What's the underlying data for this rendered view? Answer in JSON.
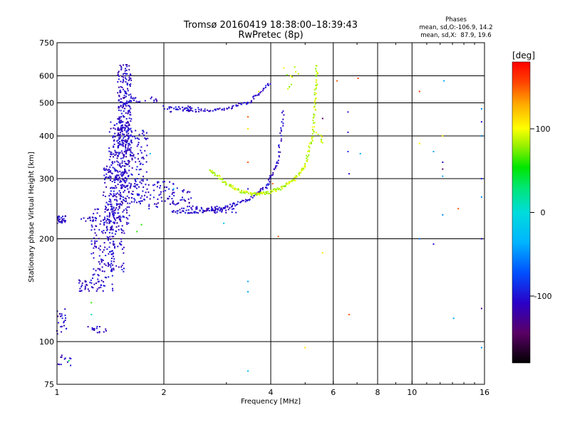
{
  "chart_data": {
    "type": "scatter",
    "title": "Tromsø 20160419 18:38:00–18:39:43",
    "subtitle": "RwPretec (8p)",
    "xlabel": "Frequency [MHz]",
    "ylabel": "Stationary phase Virtual Height [km]",
    "x_scale": "log",
    "y_scale": "log",
    "xlim": [
      1,
      16
    ],
    "ylim": [
      75,
      750
    ],
    "x_ticks": [
      1,
      2,
      4,
      6,
      8,
      10,
      16
    ],
    "y_ticks": [
      75,
      100,
      200,
      300,
      400,
      500,
      600,
      750
    ],
    "x_gridlines": [
      2,
      4,
      6,
      8,
      10
    ],
    "y_gridlines": [
      100,
      200,
      300,
      400,
      500,
      600
    ],
    "grid": true,
    "info": {
      "heading": "Phases",
      "o_stats": "mean, sd,O:-106.9, 14.2",
      "x_stats": "mean, sd,X:  87.9, 19.6"
    },
    "colorbar": {
      "label": "[deg]",
      "range": [
        -180,
        180
      ],
      "ticks": [
        -100,
        0,
        100
      ],
      "tick_labels": [
        "-100",
        "0",
        "100"
      ]
    },
    "series": [
      {
        "mode": "O",
        "phase_deg": -107,
        "clusters": [
          {
            "x": [
              1.0,
              1.06
            ],
            "y": [
              222,
              234
            ],
            "n": 30
          },
          {
            "x": [
              1.0,
              1.07
            ],
            "y": [
              105,
              125
            ],
            "n": 22
          },
          {
            "x": [
              1.0,
              1.1
            ],
            "y": [
              85,
              92
            ],
            "n": 12
          },
          {
            "x": [
              1.17,
              1.3
            ],
            "y": [
              225,
              232
            ],
            "n": 16
          },
          {
            "x": [
              1.15,
              1.28
            ],
            "y": [
              140,
              152
            ],
            "n": 26
          },
          {
            "x": [
              1.2,
              1.38
            ],
            "y": [
              106,
              111
            ],
            "n": 16
          },
          {
            "x": [
              1.25,
              1.45
            ],
            "y": [
              140,
              250
            ],
            "n": 130
          },
          {
            "x": [
              1.35,
              1.55
            ],
            "y": [
              160,
              330
            ],
            "n": 180
          },
          {
            "x": [
              1.4,
              1.6
            ],
            "y": [
              220,
              440
            ],
            "n": 260
          },
          {
            "x": [
              1.48,
              1.62
            ],
            "y": [
              350,
              650
            ],
            "n": 230
          },
          {
            "x": [
              1.55,
              1.8
            ],
            "y": [
              250,
              420
            ],
            "n": 130
          },
          {
            "x": [
              1.6,
              1.95
            ],
            "y": [
              500,
              520
            ],
            "n": 20
          },
          {
            "x": [
              1.95,
              2.5
            ],
            "y": [
              470,
              490
            ],
            "n": 22
          },
          {
            "x": [
              1.5,
              2.2
            ],
            "y": [
              280,
              295
            ],
            "n": 30
          },
          {
            "x": [
              1.8,
              2.4
            ],
            "y": [
              245,
              280
            ],
            "n": 60
          },
          {
            "x": [
              2.2,
              3.2
            ],
            "y": [
              238,
              250
            ],
            "n": 60
          }
        ],
        "curves": [
          {
            "x": [
              2.0,
              2.5,
              3.0,
              3.5,
              4.0
            ],
            "y": [
              485,
              475,
              480,
              505,
              575
            ]
          },
          {
            "x": [
              2.1,
              2.5,
              3.0,
              3.5,
              3.9,
              4.2,
              4.35
            ],
            "y": [
              240,
              240,
              248,
              262,
              285,
              340,
              480
            ]
          }
        ]
      },
      {
        "mode": "X",
        "phase_deg": 88,
        "curves": [
          {
            "x": [
              2.7,
              3.0,
              3.3,
              3.6,
              3.9,
              4.3,
              4.7,
              5.0,
              5.25,
              5.35,
              5.4
            ],
            "y": [
              318,
              290,
              275,
              270,
              272,
              282,
              300,
              330,
              400,
              520,
              650
            ]
          }
        ],
        "clusters": [
          {
            "x": [
              4.3,
              4.8
            ],
            "y": [
              545,
              640
            ],
            "n": 10
          },
          {
            "x": [
              5.35,
              5.6
            ],
            "y": [
              380,
              420
            ],
            "n": 8
          }
        ]
      }
    ],
    "scattered_points": [
      {
        "x": 1.25,
        "y": 130,
        "phase": 60
      },
      {
        "x": 1.25,
        "y": 120,
        "phase": 10
      },
      {
        "x": 1.08,
        "y": 88,
        "phase": 40
      },
      {
        "x": 1.83,
        "y": 355,
        "phase": -30
      },
      {
        "x": 1.73,
        "y": 220,
        "phase": 60
      },
      {
        "x": 1.68,
        "y": 210,
        "phase": 60
      },
      {
        "x": 2.13,
        "y": 280,
        "phase": -40
      },
      {
        "x": 2.95,
        "y": 222,
        "phase": -20
      },
      {
        "x": 3.45,
        "y": 280,
        "phase": -100
      },
      {
        "x": 3.45,
        "y": 140,
        "phase": -40
      },
      {
        "x": 3.45,
        "y": 150,
        "phase": -40
      },
      {
        "x": 3.45,
        "y": 82,
        "phase": -30
      },
      {
        "x": 3.45,
        "y": 335,
        "phase": 150
      },
      {
        "x": 3.45,
        "y": 455,
        "phase": 150
      },
      {
        "x": 3.45,
        "y": 420,
        "phase": 110
      },
      {
        "x": 3.7,
        "y": 540,
        "phase": 110
      },
      {
        "x": 4.05,
        "y": 290,
        "phase": 150
      },
      {
        "x": 4.2,
        "y": 203,
        "phase": 150
      },
      {
        "x": 4.55,
        "y": 600,
        "phase": 110
      },
      {
        "x": 5.0,
        "y": 96,
        "phase": 110
      },
      {
        "x": 5.6,
        "y": 182,
        "phase": 110
      },
      {
        "x": 5.6,
        "y": 450,
        "phase": -150
      },
      {
        "x": 6.15,
        "y": 580,
        "phase": 150
      },
      {
        "x": 6.65,
        "y": 120,
        "phase": 150
      },
      {
        "x": 6.6,
        "y": 470,
        "phase": -100
      },
      {
        "x": 6.6,
        "y": 410,
        "phase": -110
      },
      {
        "x": 6.6,
        "y": 360,
        "phase": -90
      },
      {
        "x": 6.65,
        "y": 310,
        "phase": -100
      },
      {
        "x": 7.05,
        "y": 590,
        "phase": 160
      },
      {
        "x": 7.15,
        "y": 355,
        "phase": -40
      },
      {
        "x": 10.5,
        "y": 540,
        "phase": 160
      },
      {
        "x": 10.5,
        "y": 380,
        "phase": 100
      },
      {
        "x": 10.5,
        "y": 200,
        "phase": -60
      },
      {
        "x": 11.5,
        "y": 360,
        "phase": -40
      },
      {
        "x": 11.5,
        "y": 193,
        "phase": -100
      },
      {
        "x": 12.3,
        "y": 580,
        "phase": -40
      },
      {
        "x": 12.2,
        "y": 400,
        "phase": 110
      },
      {
        "x": 12.2,
        "y": 335,
        "phase": -110
      },
      {
        "x": 12.2,
        "y": 320,
        "phase": -150
      },
      {
        "x": 12.2,
        "y": 305,
        "phase": -40
      },
      {
        "x": 12.2,
        "y": 235,
        "phase": -50
      },
      {
        "x": 13.1,
        "y": 117,
        "phase": -40
      },
      {
        "x": 13.5,
        "y": 245,
        "phase": 150
      },
      {
        "x": 15.7,
        "y": 480,
        "phase": -50
      },
      {
        "x": 15.7,
        "y": 400,
        "phase": -50
      },
      {
        "x": 15.7,
        "y": 300,
        "phase": -90
      },
      {
        "x": 15.7,
        "y": 265,
        "phase": -50
      },
      {
        "x": 15.7,
        "y": 200,
        "phase": -110
      },
      {
        "x": 15.7,
        "y": 125,
        "phase": -130
      },
      {
        "x": 15.7,
        "y": 96,
        "phase": -50
      },
      {
        "x": 15.7,
        "y": 440,
        "phase": -110
      }
    ]
  }
}
